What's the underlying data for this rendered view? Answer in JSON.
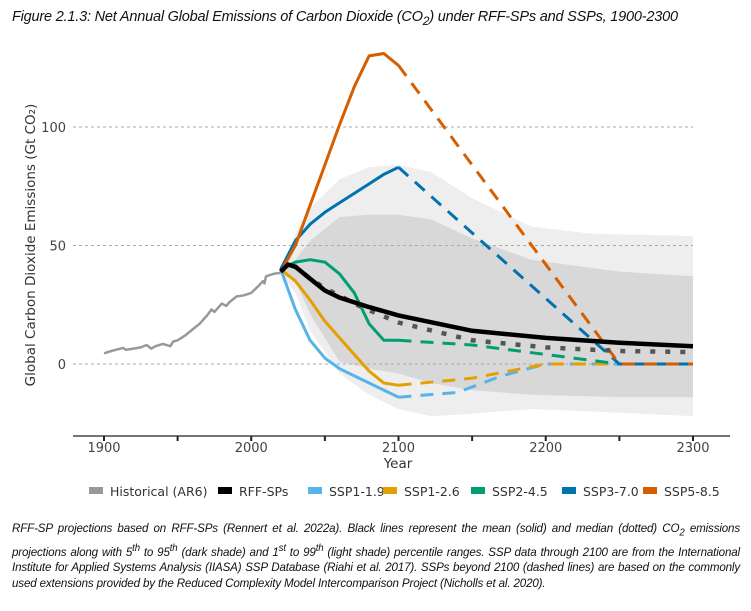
{
  "title_parts": {
    "pre": "Figure 2.1.3: Net Annual Global Emissions of Carbon Dioxide (CO",
    "sub": "2",
    "post": ") under RFF-SPs and SSPs, 1900-2300"
  },
  "caption_parts": {
    "a": "RFF-SP projections based on RFF-SPs (Rennert et al. 2022a). Black lines represent the mean (solid) and median (dotted) CO",
    "a_sub": "2",
    "b": " emissions projections along with 5",
    "b_sup": "th",
    "c": " to 95",
    "c_sup": "th",
    "d": " (dark shade) and 1",
    "d_sup": "st",
    "e": " to 99",
    "e_sup": "th",
    "f": " (light shade) percentile ranges. SSP data through 2100 are from the International Institute for Applied Systems Analysis (IIASA) SSP Database (Riahi et al. 2017). SSPs beyond 2100 (dashed lines) are based on the commonly used extensions provided by the Reduced Complexity Model Intercomparison Project (Nicholls et al. 2020)."
  },
  "chart_data": {
    "type": "line",
    "xlabel": "Year",
    "ylabel": "Global Carbon Dioxide Emissions (Gt CO₂)",
    "xlim": [
      1880,
      2325
    ],
    "ylim": [
      -30,
      135
    ],
    "xticks": [
      1900,
      2000,
      2100,
      2200,
      2300
    ],
    "xticks_minor": [
      1950,
      2050,
      2150,
      2250
    ],
    "yticks": [
      0,
      50,
      100
    ],
    "grid": "horizontal dotted",
    "legend_position": "bottom",
    "bands": [
      {
        "name": "1st-99th percentile",
        "color": "#eeeeee",
        "x": [
          2020,
          2030,
          2040,
          2060,
          2080,
          2100,
          2122,
          2150,
          2190,
          2230,
          2300
        ],
        "upper": [
          38,
          55,
          66,
          78,
          83,
          84,
          81,
          70,
          58,
          55,
          54
        ],
        "lower": [
          38,
          30,
          14,
          -4,
          -13,
          -19,
          -22,
          -21,
          -19,
          -20,
          -22
        ]
      },
      {
        "name": "5th-95th percentile",
        "color": "#d8d8d8",
        "x": [
          2020,
          2030,
          2040,
          2060,
          2080,
          2100,
          2122,
          2150,
          2190,
          2250,
          2300
        ],
        "upper": [
          38,
          44,
          52,
          62,
          63,
          63,
          61,
          53,
          44,
          39,
          37
        ],
        "lower": [
          38,
          35,
          21,
          1,
          -2,
          -4,
          -8,
          -11,
          -13,
          -14,
          -14
        ]
      }
    ],
    "series": [
      {
        "name": "Historical (AR6)",
        "color": "#999999",
        "style": "solid",
        "x": [
          1900,
          1905,
          1910,
          1913,
          1915,
          1920,
          1925,
          1929,
          1932,
          1935,
          1940,
          1945,
          1947,
          1950,
          1955,
          1960,
          1965,
          1970,
          1973,
          1975,
          1980,
          1983,
          1985,
          1990,
          1995,
          2000,
          2005,
          2008,
          2009,
          2010,
          2015,
          2020
        ],
        "y": [
          4.5,
          5.5,
          6.3,
          6.8,
          6.0,
          6.5,
          7.0,
          8.0,
          6.5,
          7.5,
          8.5,
          7.5,
          9.5,
          10,
          12,
          14.5,
          17,
          20.5,
          23,
          22,
          25.5,
          24.5,
          26,
          28.5,
          29,
          30,
          33,
          35,
          34,
          37,
          38,
          38.5
        ]
      },
      {
        "name": "RFF-SPs mean",
        "legend": "RFF-SPs",
        "color": "#000000",
        "style": "solid",
        "x": [
          2020,
          2025,
          2030,
          2040,
          2050,
          2060,
          2080,
          2100,
          2150,
          2200,
          2250,
          2300
        ],
        "y": [
          39,
          42,
          41,
          36,
          31,
          28,
          24,
          20.5,
          14,
          11,
          9,
          7.5
        ]
      },
      {
        "name": "RFF-SPs median",
        "color": "#555555",
        "style": "dotted",
        "x": [
          2020,
          2025,
          2030,
          2040,
          2050,
          2075,
          2100,
          2150,
          2200,
          2250,
          2300
        ],
        "y": [
          39,
          42,
          41,
          36,
          32,
          24,
          17.5,
          10,
          7,
          5.5,
          5
        ]
      },
      {
        "name": "SSP1-1.9",
        "color": "#56B4E9",
        "x": [
          2020,
          2030,
          2040,
          2050,
          2060,
          2070,
          2080,
          2090,
          2100
        ],
        "y": [
          40,
          23,
          10,
          2.5,
          -2,
          -5,
          -8,
          -11,
          -14
        ],
        "x_ext": [
          2100,
          2140,
          2170,
          2200,
          2300
        ],
        "y_ext": [
          -14,
          -12,
          -5,
          0,
          0
        ]
      },
      {
        "name": "SSP1-2.6",
        "color": "#E69F00",
        "x": [
          2020,
          2030,
          2040,
          2050,
          2060,
          2070,
          2080,
          2090,
          2100
        ],
        "y": [
          40,
          35,
          27,
          18,
          11,
          4,
          -3,
          -8,
          -9
        ],
        "x_ext": [
          2100,
          2150,
          2200,
          2300
        ],
        "y_ext": [
          -9,
          -6,
          0,
          0
        ]
      },
      {
        "name": "SSP2-4.5",
        "color": "#009E73",
        "x": [
          2020,
          2030,
          2040,
          2050,
          2060,
          2070,
          2080,
          2090,
          2100
        ],
        "y": [
          40,
          43,
          44,
          43,
          38,
          30,
          17,
          10,
          10
        ],
        "x_ext": [
          2100,
          2150,
          2200,
          2250,
          2300
        ],
        "y_ext": [
          10,
          8,
          4,
          0,
          0
        ]
      },
      {
        "name": "SSP3-7.0",
        "color": "#0072B2",
        "x": [
          2020,
          2030,
          2040,
          2050,
          2060,
          2070,
          2080,
          2090,
          2100
        ],
        "y": [
          40,
          52,
          59,
          64,
          68,
          72,
          76,
          80,
          83
        ],
        "x_ext": [
          2100,
          2250,
          2300
        ],
        "y_ext": [
          83,
          0,
          0
        ]
      },
      {
        "name": "SSP5-8.5",
        "color": "#D55E00",
        "x": [
          2020,
          2030,
          2040,
          2050,
          2060,
          2070,
          2080,
          2090,
          2100
        ],
        "y": [
          39,
          50,
          67,
          84,
          101,
          117,
          130,
          131,
          126
        ],
        "x_ext": [
          2100,
          2250,
          2300
        ],
        "y_ext": [
          126,
          0,
          0
        ]
      }
    ],
    "legend": [
      {
        "label": "Historical (AR6)",
        "color": "#999999"
      },
      {
        "label": "RFF-SPs",
        "color": "#000000"
      },
      {
        "label": "SSP1-1.9",
        "color": "#56B4E9"
      },
      {
        "label": "SSP1-2.6",
        "color": "#E69F00"
      },
      {
        "label": "SSP2-4.5",
        "color": "#009E73"
      },
      {
        "label": "SSP3-7.0",
        "color": "#0072B2"
      },
      {
        "label": "SSP5-8.5",
        "color": "#D55E00"
      }
    ]
  }
}
